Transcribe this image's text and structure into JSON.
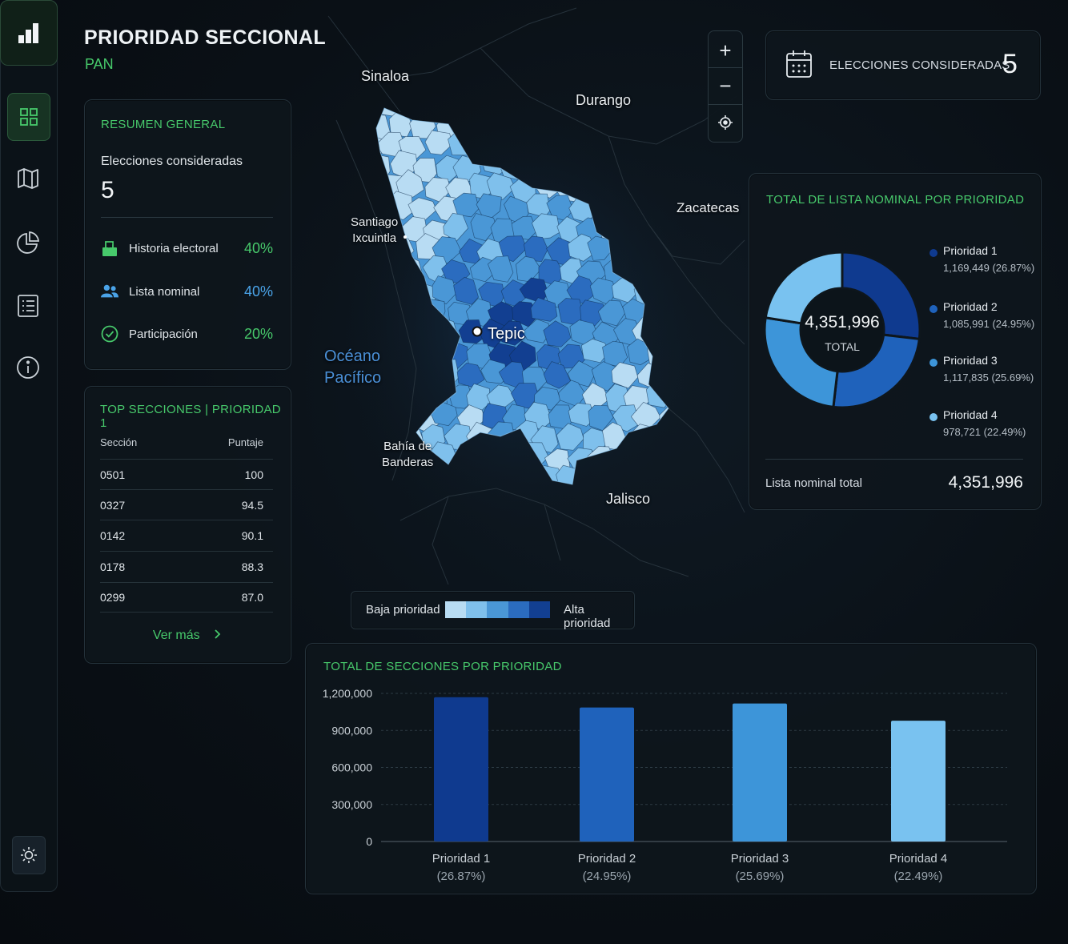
{
  "header": {
    "title": "PRIORIDAD SECCIONAL",
    "subtitle": "PAN"
  },
  "sidebar": {
    "items": [
      {
        "name": "dashboard",
        "icon": "grid-icon",
        "active": true
      },
      {
        "name": "map",
        "icon": "map-icon",
        "active": false
      },
      {
        "name": "analytics",
        "icon": "pie-chart-icon",
        "active": false
      },
      {
        "name": "list",
        "icon": "list-icon",
        "active": false
      },
      {
        "name": "info",
        "icon": "info-icon",
        "active": false
      }
    ],
    "theme_icon": "sun-icon"
  },
  "resumen": {
    "title": "RESUMEN GENERAL",
    "elections_label": "Elecciones consideradas",
    "elections_value": "5",
    "rows": [
      {
        "label": "Historia electoral",
        "value": "40%",
        "icon": "ballot-box-icon",
        "color": "#47c96b"
      },
      {
        "label": "Lista nominal",
        "value": "40%",
        "icon": "users-icon",
        "color": "#4aa3e8"
      },
      {
        "label": "Participación",
        "value": "20%",
        "icon": "check-circle-icon",
        "color": "#47c96b"
      }
    ]
  },
  "top_secciones": {
    "title": "TOP SECCIONES | PRIORIDAD 1",
    "columns": [
      "Sección",
      "Puntaje"
    ],
    "rows": [
      [
        "0501",
        "100"
      ],
      [
        "0327",
        "94.5"
      ],
      [
        "0142",
        "90.1"
      ],
      [
        "0178",
        "88.3"
      ],
      [
        "0299",
        "87.0"
      ]
    ],
    "more_label": "Ver más",
    "more_icon": "chevron-right-icon"
  },
  "map": {
    "labels": {
      "sinaloa": "Sinaloa",
      "durango": "Durango",
      "zacatecas": "Zacatecas",
      "santiago_1": "Santiago",
      "santiago_2": "Ixcuintla",
      "tepic": "Tepic",
      "oceano_1": "Océano",
      "oceano_2": "Pacífico",
      "bahia_1": "Bahía de",
      "bahia_2": "Banderas",
      "jalisco": "Jalisco"
    },
    "controls": {
      "zoom_in": "+",
      "zoom_out": "−",
      "locate_icon": "crosshair-icon"
    },
    "legend": {
      "low": "Baja prioridad",
      "high": "Alta prioridad",
      "colors": [
        "#b8dcf3",
        "#7fc0ec",
        "#4a97d6",
        "#2b6cbf",
        "#123f91"
      ]
    }
  },
  "elecciones": {
    "label": "ELECCIONES CONSIDERADAS",
    "value": "5",
    "icon": "calendar-icon"
  },
  "donut": {
    "title": "TOTAL DE LISTA NOMINAL POR PRIORIDAD",
    "center_value": "4,351,996",
    "center_label": "TOTAL",
    "items": [
      {
        "name": "Prioridad 1",
        "detail": "1,169,449 (26.87%)",
        "value": 1169449,
        "color": "#0f3a8f"
      },
      {
        "name": "Prioridad 2",
        "detail": "1,085,991 (24.95%)",
        "value": 1085991,
        "color": "#1f62bb"
      },
      {
        "name": "Prioridad 3",
        "detail": "1,117,835 (25.69%)",
        "value": 1117835,
        "color": "#3d95d9"
      },
      {
        "name": "Prioridad 4",
        "detail": "978,721 (22.49%)",
        "value": 978721,
        "color": "#79c2f0"
      }
    ],
    "footer_label": "Lista nominal total",
    "footer_value": "4,351,996"
  },
  "chart_data": {
    "type": "bar",
    "title": "TOTAL DE SECCIONES POR PRIORIDAD",
    "categories": [
      "Prioridad 1",
      "Prioridad 2",
      "Prioridad 3",
      "Prioridad 4"
    ],
    "category_sublabels": [
      "(26.87%)",
      "(24.95%)",
      "(25.69%)",
      "(22.49%)"
    ],
    "values": [
      1169449,
      1085991,
      1117835,
      978721
    ],
    "colors": [
      "#0f3a8f",
      "#1f62bb",
      "#3d95d9",
      "#79c2f0"
    ],
    "ylim": [
      0,
      1200000
    ],
    "yticks": [
      0,
      300000,
      600000,
      900000,
      1200000
    ],
    "ytick_labels": [
      "0",
      "300,000",
      "600,000",
      "900,000",
      "1,200,000"
    ],
    "grid": true
  }
}
